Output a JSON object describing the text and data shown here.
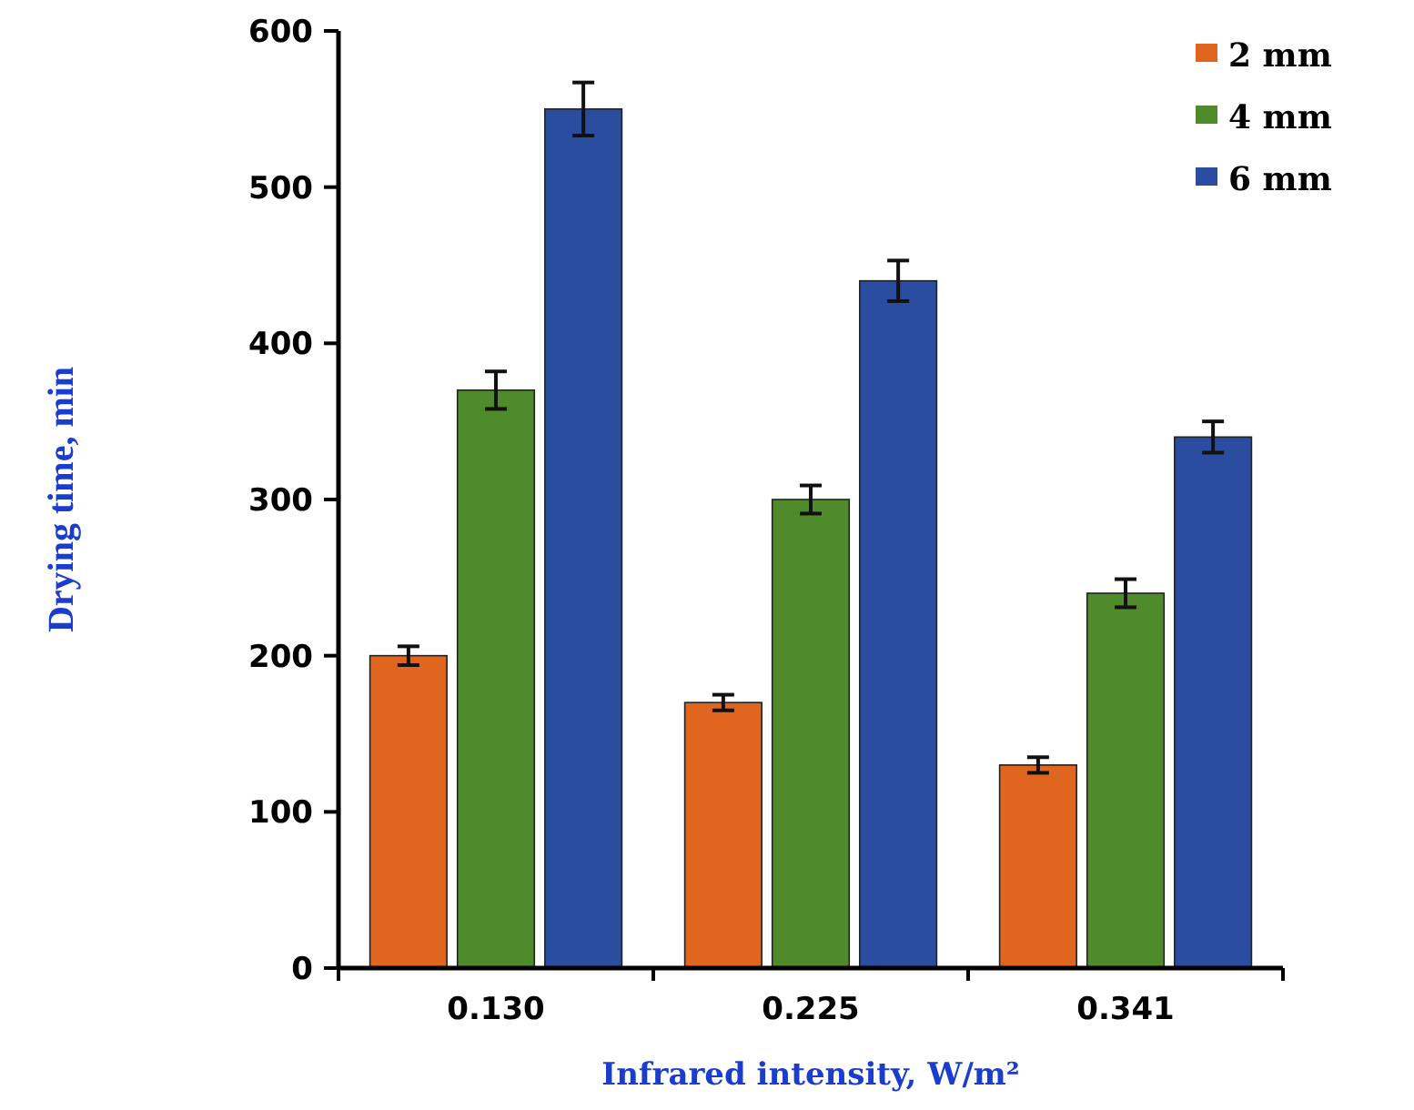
{
  "chart_data": {
    "type": "bar",
    "xlabel": "Infrared intensity, W/m²",
    "ylabel": "Drying time, min",
    "categories": [
      "0.130",
      "0.225",
      "0.341"
    ],
    "series": [
      {
        "name": "2 mm",
        "color": "#e0661f",
        "values": [
          200,
          170,
          130
        ],
        "errors": [
          6,
          5,
          5
        ]
      },
      {
        "name": "4 mm",
        "color": "#4f8a2b",
        "values": [
          370,
          300,
          240
        ],
        "errors": [
          12,
          9,
          9
        ]
      },
      {
        "name": "6 mm",
        "color": "#2a4da0",
        "values": [
          550,
          440,
          340
        ],
        "errors": [
          17,
          13,
          10
        ]
      }
    ],
    "ylim": [
      0,
      600
    ],
    "yticks": [
      0,
      100,
      200,
      300,
      400,
      500,
      600
    ],
    "grid": false,
    "legend": "top right"
  }
}
